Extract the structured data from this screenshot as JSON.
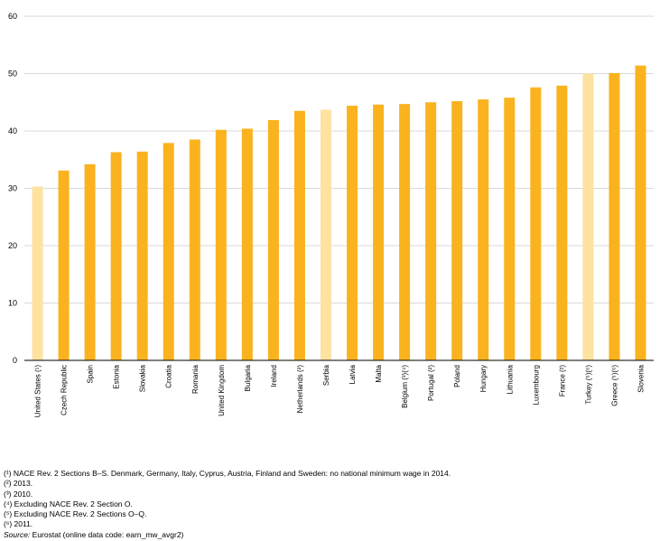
{
  "chart_data": {
    "type": "bar",
    "title": "",
    "xlabel": "",
    "ylabel": "",
    "ylim": [
      0,
      60
    ],
    "yticks": [
      0,
      10,
      20,
      30,
      40,
      50,
      60
    ],
    "grid": true,
    "legend": "none",
    "categories": [
      "United States (¹)",
      "Czech Republic",
      "Spain",
      "Estonia",
      "Slovakia",
      "Croatia",
      "Romania",
      "United Kingdom",
      "Bulgaria",
      "Ireland",
      "Netherlands (²)",
      "Serbia",
      "Latvia",
      "Malta",
      "Belgium (³)(⁴)",
      "Portugal (²)",
      "Poland",
      "Hungary",
      "Lithuania",
      "Luxembourg",
      "France (²)",
      "Turkey (⁵)(⁶)",
      "Greece (⁵)(⁶)",
      "Slovenia"
    ],
    "values": [
      30.3,
      33.1,
      34.2,
      36.3,
      36.4,
      37.9,
      38.5,
      40.2,
      40.4,
      41.9,
      43.5,
      43.7,
      44.4,
      44.6,
      44.7,
      45.0,
      45.2,
      45.5,
      45.8,
      47.6,
      47.9,
      50.0,
      50.1,
      51.4
    ],
    "highlight": [
      true,
      false,
      false,
      false,
      false,
      false,
      false,
      false,
      false,
      false,
      false,
      true,
      false,
      false,
      false,
      false,
      false,
      false,
      false,
      false,
      false,
      true,
      false,
      false
    ],
    "colors": {
      "bar": "#FAB31E",
      "bar_light": "#FDE2A0",
      "grid": "#D9D9D9",
      "axis": "#000000"
    }
  },
  "footnotes": [
    "(¹) NACE Rev. 2 Sections B–S. Denmark, Germany, Italy, Cyprus, Austria, Finland and Sweden: no national minimum wage in 2014.",
    "(²) 2013.",
    "(³) 2010.",
    "(⁴) Excluding NACE Rev. 2 Section O.",
    "(⁵) Excluding NACE Rev. 2 Sections O–Q.",
    "(⁶) 2011."
  ],
  "source": {
    "label": "Source:",
    "text": " Eurostat (online data code: earn_mw_avgr2)"
  }
}
